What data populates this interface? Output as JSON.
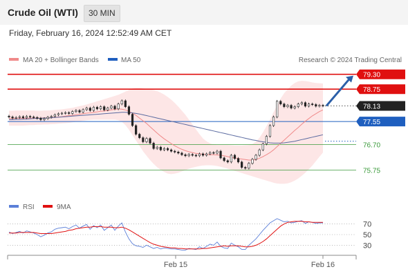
{
  "header": {
    "title": "Crude Oil (WTI)",
    "timeframe": "30 MIN"
  },
  "datetime": "Friday, February 16, 2024 12:52:49 AM CET",
  "legend": {
    "ma20": "MA 20 + Bollinger Bands",
    "ma50": "MA 50",
    "credit": "Research © 2024 Trading Central"
  },
  "rsi_legend": {
    "rsi": "RSI",
    "ma9": "9MA"
  },
  "colors": {
    "resistance": "#e01010",
    "support_blue": "#1f5fbf",
    "support_green": "#3a9a3a",
    "price": "#333333",
    "bands": "#fde2e2",
    "ma20": "#f08a8a",
    "ma50": "#5a6aa0",
    "arrow": "#2b5fa8",
    "rsi": "#5b7fd8",
    "rsi_ma": "#e01010"
  },
  "chart_data": {
    "type": "candlestick",
    "ylim": [
      75.2,
      79.6
    ],
    "levels": [
      {
        "value": 79.3,
        "label": "79.30",
        "type": "resistance"
      },
      {
        "value": 78.75,
        "label": "78.75",
        "type": "resistance"
      },
      {
        "value": 78.13,
        "label": "78.13",
        "type": "last"
      },
      {
        "value": 77.55,
        "label": "77.55",
        "type": "support"
      },
      {
        "value": 76.7,
        "label": "76.70",
        "type": "support2"
      },
      {
        "value": 75.75,
        "label": "75.75",
        "type": "support2"
      }
    ],
    "x_ticks": [
      "Feb 15",
      "Feb 16"
    ],
    "closes": [
      77.72,
      77.68,
      77.7,
      77.73,
      77.69,
      77.74,
      77.72,
      77.7,
      77.67,
      77.62,
      77.66,
      77.71,
      77.74,
      77.8,
      77.84,
      77.86,
      77.88,
      77.85,
      77.92,
      77.96,
      77.9,
      77.99,
      78.05,
      77.96,
      78.08,
      78.02,
      78.1,
      77.98,
      78.05,
      78.12,
      78.02,
      78.2,
      78.32,
      78.1,
      77.82,
      77.4,
      77.08,
      76.95,
      76.8,
      76.92,
      76.75,
      76.55,
      76.6,
      76.5,
      76.55,
      76.5,
      76.45,
      76.42,
      76.38,
      76.32,
      76.28,
      76.33,
      76.3,
      76.28,
      76.35,
      76.3,
      76.35,
      76.4,
      76.38,
      76.45,
      76.2,
      76.1,
      76.05,
      76.3,
      76.18,
      76.05,
      75.85,
      75.82,
      76.0,
      76.15,
      76.3,
      76.5,
      76.72,
      77.0,
      77.4,
      77.72,
      78.3,
      78.2,
      78.1,
      78.15,
      78.05,
      78.1,
      78.2,
      78.25,
      78.12,
      78.2,
      78.18,
      78.12,
      78.15,
      78.13
    ],
    "ma20": [
      77.66,
      77.66,
      77.67,
      77.67,
      77.67,
      77.67,
      77.68,
      77.68,
      77.68,
      77.68,
      77.69,
      77.69,
      77.7,
      77.71,
      77.72,
      77.73,
      77.75,
      77.77,
      77.78,
      77.8,
      77.82,
      77.84,
      77.86,
      77.87,
      77.89,
      77.91,
      77.93,
      77.94,
      77.96,
      77.98,
      78.0,
      78.02,
      78.01,
      77.98,
      77.93,
      77.86,
      77.78,
      77.68,
      77.58,
      77.48,
      77.36,
      77.24,
      77.12,
      77.01,
      76.91,
      76.82,
      76.73,
      76.65,
      76.58,
      76.52,
      76.47,
      76.43,
      76.4,
      76.37,
      76.35,
      76.34,
      76.33,
      76.32,
      76.32,
      76.31,
      76.3,
      76.28,
      76.25,
      76.22,
      76.2,
      76.18,
      76.16,
      76.14,
      76.12,
      76.12,
      76.14,
      76.19,
      76.25,
      76.32,
      76.4,
      76.5,
      76.62,
      76.74,
      76.86,
      76.98,
      77.1,
      77.22,
      77.33,
      77.45,
      77.56,
      77.66,
      77.76,
      77.84,
      77.92,
      77.98
    ],
    "ma50": [
      77.62,
      77.62,
      77.63,
      77.63,
      77.64,
      77.64,
      77.65,
      77.66,
      77.66,
      77.67,
      77.68,
      77.68,
      77.69,
      77.7,
      77.71,
      77.72,
      77.73,
      77.74,
      77.75,
      77.76,
      77.77,
      77.78,
      77.79,
      77.8,
      77.81,
      77.82,
      77.83,
      77.84,
      77.85,
      77.86,
      77.87,
      77.88,
      77.89,
      77.89,
      77.88,
      77.87,
      77.85,
      77.83,
      77.8,
      77.77,
      77.74,
      77.71,
      77.68,
      77.65,
      77.62,
      77.59,
      77.56,
      77.53,
      77.5,
      77.47,
      77.44,
      77.41,
      77.38,
      77.35,
      77.32,
      77.29,
      77.26,
      77.23,
      77.2,
      77.17,
      77.14,
      77.11,
      77.08,
      77.05,
      77.02,
      76.99,
      76.96,
      76.93,
      76.9,
      76.87,
      76.85,
      76.82,
      76.8,
      76.78,
      76.76,
      76.75,
      76.75,
      76.75,
      76.76,
      76.78,
      76.8,
      76.82,
      76.85,
      76.88,
      76.91,
      76.94,
      76.97,
      77.0,
      77.03,
      77.06
    ],
    "band_upper": [
      77.95,
      77.95,
      77.96,
      77.96,
      77.96,
      77.96,
      77.96,
      77.96,
      77.95,
      77.95,
      77.96,
      77.96,
      77.97,
      77.98,
      77.99,
      78.0,
      78.02,
      78.04,
      78.06,
      78.09,
      78.12,
      78.15,
      78.18,
      78.22,
      78.26,
      78.3,
      78.34,
      78.38,
      78.42,
      78.46,
      78.5,
      78.54,
      78.6,
      78.66,
      78.72,
      78.78,
      78.8,
      78.8,
      78.78,
      78.76,
      78.74,
      78.72,
      78.68,
      78.62,
      78.55,
      78.46,
      78.36,
      78.24,
      78.1,
      77.95,
      77.8,
      77.62,
      77.44,
      77.26,
      77.08,
      76.92,
      76.82,
      76.74,
      76.7,
      76.68,
      76.68,
      76.68,
      76.68,
      76.67,
      76.66,
      76.66,
      76.66,
      76.67,
      76.68,
      76.72,
      76.8,
      76.95,
      77.15,
      77.38,
      77.62,
      77.9,
      78.15,
      78.4,
      78.6,
      78.75,
      78.88,
      78.98,
      79.04,
      79.06,
      79.05,
      79.03,
      79.0,
      78.98,
      78.97,
      78.96
    ],
    "band_lower": [
      77.4,
      77.4,
      77.4,
      77.4,
      77.4,
      77.41,
      77.42,
      77.42,
      77.43,
      77.43,
      77.44,
      77.44,
      77.45,
      77.46,
      77.47,
      77.48,
      77.49,
      77.5,
      77.52,
      77.54,
      77.56,
      77.58,
      77.6,
      77.61,
      77.62,
      77.62,
      77.62,
      77.62,
      77.62,
      77.62,
      77.62,
      77.6,
      77.54,
      77.42,
      77.25,
      77.05,
      76.85,
      76.65,
      76.45,
      76.28,
      76.12,
      75.98,
      75.86,
      75.76,
      75.68,
      75.62,
      75.6,
      75.62,
      75.65,
      75.7,
      75.75,
      75.8,
      75.84,
      75.87,
      75.9,
      75.92,
      75.93,
      75.93,
      75.92,
      75.9,
      75.87,
      75.84,
      75.8,
      75.76,
      75.72,
      75.68,
      75.64,
      75.6,
      75.56,
      75.52,
      75.48,
      75.44,
      75.4,
      75.36,
      75.32,
      75.28,
      75.25,
      75.24,
      75.24,
      75.26,
      75.3,
      75.36,
      75.44,
      75.54,
      75.65,
      75.78,
      75.92,
      76.08,
      76.24,
      76.4
    ],
    "rsi": {
      "levels": [
        70,
        50,
        30
      ],
      "ylim": [
        15,
        85
      ],
      "values": [
        55,
        52,
        54,
        56,
        53,
        57,
        55,
        53,
        50,
        46,
        49,
        53,
        55,
        60,
        62,
        63,
        64,
        61,
        65,
        68,
        62,
        66,
        69,
        60,
        67,
        63,
        68,
        58,
        63,
        68,
        58,
        66,
        72,
        55,
        42,
        33,
        29,
        28,
        26,
        30,
        27,
        24,
        26,
        23,
        25,
        24,
        23,
        23,
        22,
        21,
        21,
        24,
        23,
        22,
        27,
        24,
        28,
        32,
        30,
        36,
        28,
        25,
        24,
        34,
        30,
        27,
        22,
        22,
        30,
        36,
        42,
        50,
        58,
        65,
        72,
        76,
        80,
        77,
        74,
        75,
        72,
        73,
        75,
        76,
        71,
        74,
        73,
        71,
        72,
        72
      ],
      "ma_values": [
        53,
        53,
        53,
        54,
        54,
        54,
        54,
        54,
        53,
        52,
        52,
        52,
        52,
        53,
        54,
        55,
        56,
        58,
        59,
        61,
        62,
        63,
        64,
        64,
        65,
        65,
        65,
        64,
        64,
        64,
        63,
        63,
        64,
        62,
        59,
        55,
        51,
        47,
        43,
        39,
        35,
        32,
        30,
        28,
        27,
        26,
        25,
        25,
        24,
        24,
        23,
        23,
        23,
        23,
        23,
        24,
        24,
        25,
        26,
        27,
        28,
        29,
        28,
        29,
        29,
        29,
        28,
        27,
        27,
        28,
        30,
        33,
        37,
        42,
        48,
        54,
        60,
        66,
        70,
        73,
        74,
        75,
        75,
        75,
        74,
        74,
        73,
        73,
        73,
        73
      ]
    }
  }
}
